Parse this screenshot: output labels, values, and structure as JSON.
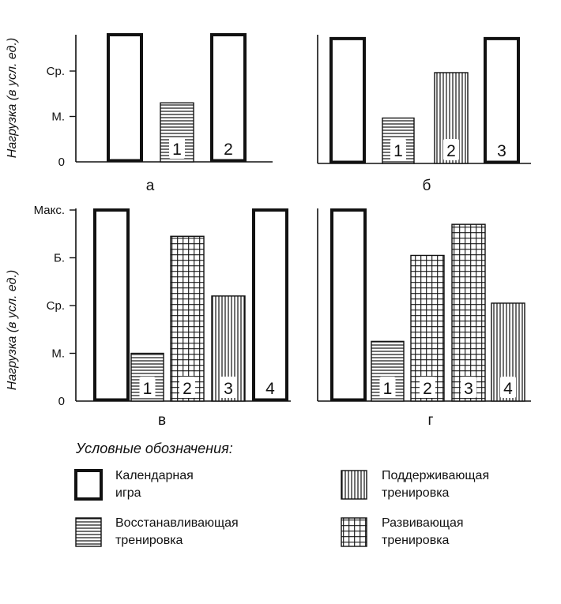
{
  "chart_data": [
    {
      "panel": "а",
      "ylabel": "Нагрузка (в усл. ед.)",
      "ytick_labels": [
        "0",
        "М.",
        "Ср."
      ],
      "ytick_values": [
        0,
        1,
        2
      ],
      "ylim": [
        0,
        2.8
      ],
      "bars": [
        {
          "type": "game",
          "value": 2.8,
          "number": ""
        },
        {
          "type": "recovery",
          "value": 1.3,
          "number": "1"
        },
        {
          "type": "game",
          "value": 2.8,
          "number": "2"
        }
      ]
    },
    {
      "panel": "б",
      "ylabel": "",
      "ytick_labels": [],
      "ytick_values": [],
      "ylim": [
        0,
        2.8
      ],
      "bars": [
        {
          "type": "game",
          "value": 2.75,
          "number": ""
        },
        {
          "type": "recovery",
          "value": 1.0,
          "number": "1"
        },
        {
          "type": "support",
          "value": 2.0,
          "number": "2"
        },
        {
          "type": "game",
          "value": 2.75,
          "number": "3"
        }
      ]
    },
    {
      "panel": "в",
      "ylabel": "Нагрузка (в усл. ед.)",
      "ytick_labels": [
        "0",
        "М.",
        "Ср.",
        "Б.",
        "Макс."
      ],
      "ytick_values": [
        0,
        1,
        2,
        3,
        4
      ],
      "ylim": [
        0,
        4
      ],
      "bars": [
        {
          "type": "game",
          "value": 4.0,
          "number": ""
        },
        {
          "type": "recovery",
          "value": 1.0,
          "number": "1"
        },
        {
          "type": "developing",
          "value": 3.45,
          "number": "2"
        },
        {
          "type": "support",
          "value": 2.2,
          "number": "3"
        },
        {
          "type": "game",
          "value": 4.0,
          "number": "4"
        }
      ]
    },
    {
      "panel": "г",
      "ylabel": "",
      "ytick_labels": [],
      "ytick_values": [],
      "ylim": [
        0,
        4
      ],
      "bars": [
        {
          "type": "game",
          "value": 4.0,
          "number": ""
        },
        {
          "type": "recovery",
          "value": 1.25,
          "number": "1"
        },
        {
          "type": "developing",
          "value": 3.05,
          "number": "2"
        },
        {
          "type": "developing",
          "value": 3.7,
          "number": "3"
        },
        {
          "type": "support",
          "value": 2.05,
          "number": "4"
        }
      ]
    }
  ],
  "legend": {
    "title": "Условные обозначения:",
    "items": [
      {
        "type": "game",
        "label": "Календарная\nигра"
      },
      {
        "type": "support",
        "label": "Поддерживающая\nтренировка"
      },
      {
        "type": "recovery",
        "label": "Восстанавливающая\nтренировка"
      },
      {
        "type": "developing",
        "label": "Развивающая\nтренировка"
      }
    ]
  },
  "colors": {
    "ink": "#111111",
    "background": "#ffffff"
  }
}
